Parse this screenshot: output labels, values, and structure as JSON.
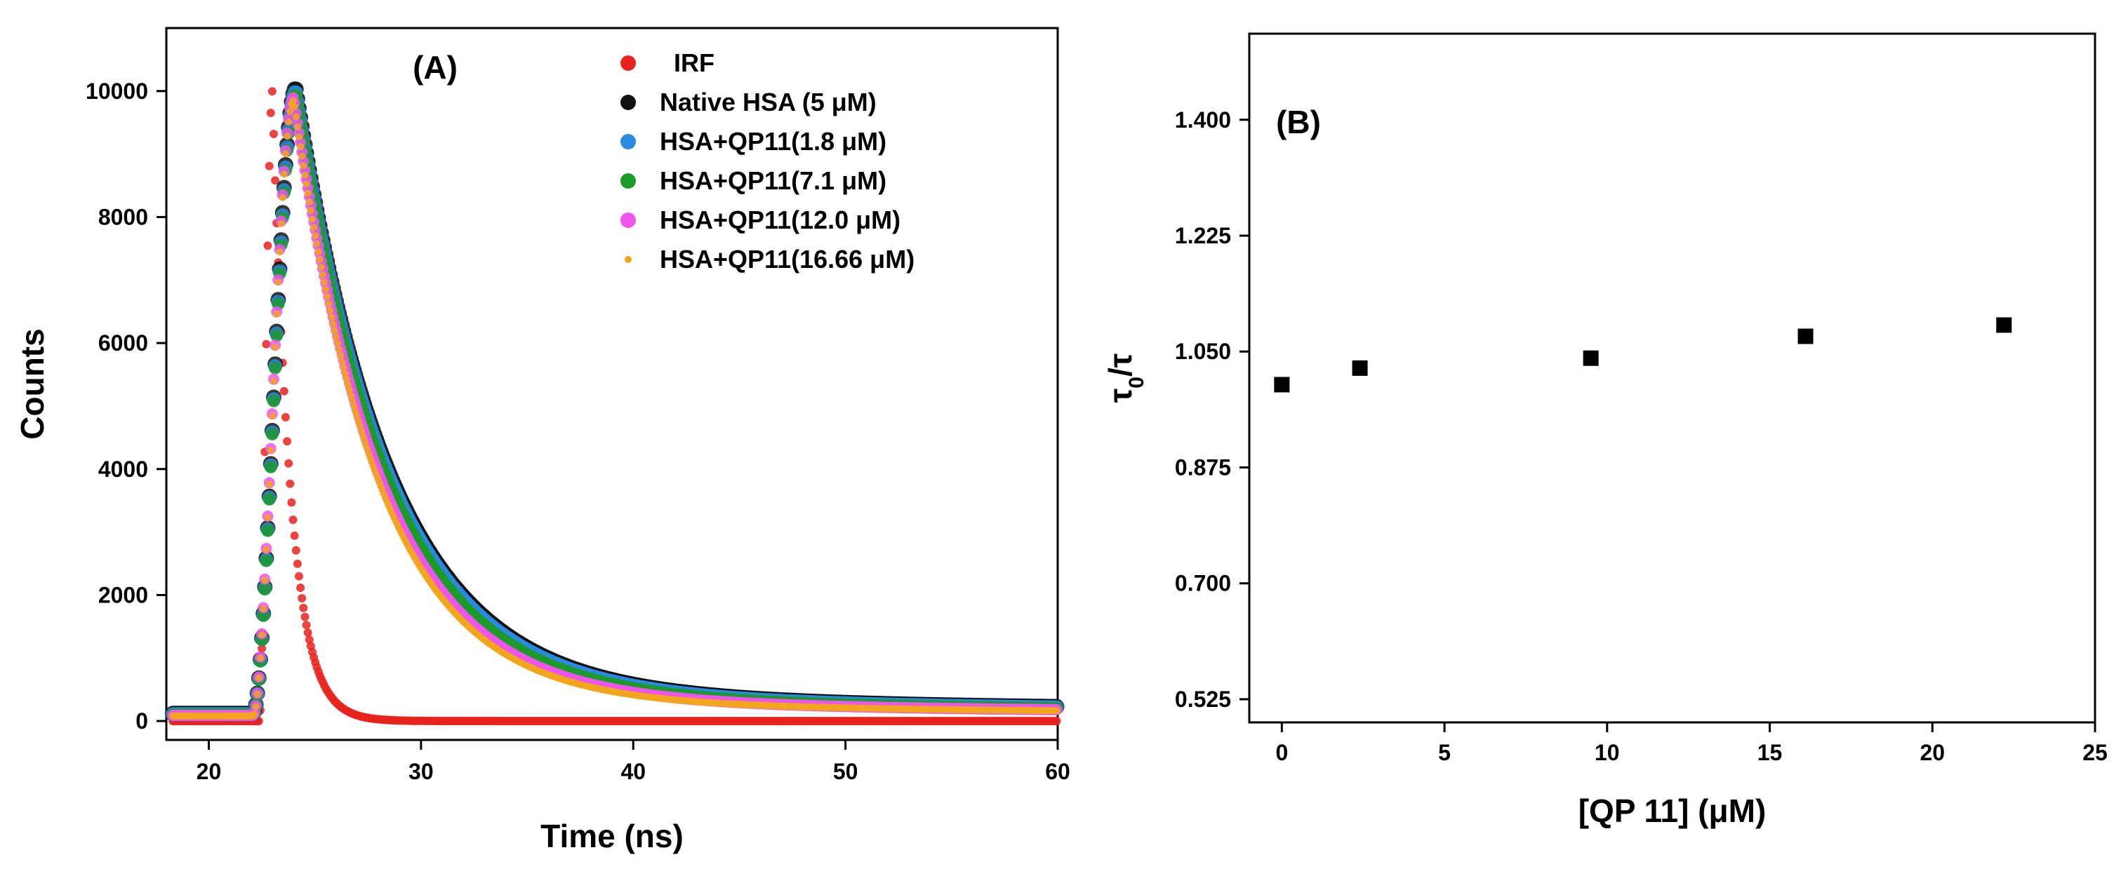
{
  "chart_data": [
    {
      "id": "A",
      "type": "scatter",
      "panel_label": "(A)",
      "xlabel": "Time (ns)",
      "ylabel": "Counts",
      "xlim": [
        18,
        60
      ],
      "ylim": [
        -300,
        11000
      ],
      "xticks": [
        20,
        30,
        40,
        50,
        60
      ],
      "yticks": [
        0,
        2000,
        4000,
        6000,
        8000,
        10000
      ],
      "legend_position": "top-right",
      "series": [
        {
          "name": "IRF",
          "color": "#e8231f",
          "model": {
            "baseline": 0,
            "onset": 22.4,
            "peak_time": 23.0,
            "peak": 10000,
            "rise_exp": 1.6,
            "decay_tau": 0.85,
            "tail_amp": 0,
            "tail_tau": 1
          }
        },
        {
          "name": "Native HSA (5 μM)",
          "color": "#111111",
          "model": {
            "baseline": 120,
            "onset": 22.1,
            "peak_time": 24.1,
            "peak": 10050,
            "rise_exp": 1.8,
            "decay_tau": 4.4,
            "tail_amp": 0.035,
            "tail_tau": 30
          }
        },
        {
          "name": "HSA+QP11(1.8 μM)",
          "color": "#2a8ae0",
          "model": {
            "baseline": 110,
            "onset": 22.1,
            "peak_time": 24.1,
            "peak": 10000,
            "rise_exp": 1.8,
            "decay_tau": 4.35,
            "tail_amp": 0.035,
            "tail_tau": 30
          }
        },
        {
          "name": "HSA+QP11(7.1 μM)",
          "color": "#1c9a2a",
          "model": {
            "baseline": 100,
            "onset": 22.1,
            "peak_time": 24.1,
            "peak": 9950,
            "rise_exp": 1.8,
            "decay_tau": 4.25,
            "tail_amp": 0.033,
            "tail_tau": 30
          }
        },
        {
          "name": "HSA+QP11(12.0 μM)",
          "color": "#ee55ee",
          "model": {
            "baseline": 90,
            "onset": 22.1,
            "peak_time": 24.0,
            "peak": 9900,
            "rise_exp": 1.8,
            "decay_tau": 4.1,
            "tail_amp": 0.03,
            "tail_tau": 30
          }
        },
        {
          "name": "HSA+QP11(16.66 μM)",
          "color": "#f2a61c",
          "model": {
            "baseline": 80,
            "onset": 22.1,
            "peak_time": 24.0,
            "peak": 9850,
            "rise_exp": 1.8,
            "decay_tau": 4.0,
            "tail_amp": 0.028,
            "tail_tau": 30
          }
        }
      ]
    },
    {
      "id": "B",
      "type": "scatter",
      "panel_label": "(B)",
      "xlabel": "[QP 11] (μM)",
      "ylabel_main": "τ",
      "ylabel_sub": "0",
      "ylabel_tail": "/τ",
      "xlim": [
        -1,
        25
      ],
      "ylim": [
        0.49,
        1.53
      ],
      "xticks": [
        0,
        5,
        10,
        15,
        20,
        25
      ],
      "yticks": [
        "0.525",
        "0.700",
        "0.875",
        "1.050",
        "1.225",
        "1.400"
      ],
      "x": [
        0,
        2.4,
        9.5,
        16.1,
        22.2
      ],
      "y": [
        1.0,
        1.025,
        1.04,
        1.073,
        1.09
      ],
      "marker_color": "#000000"
    }
  ]
}
